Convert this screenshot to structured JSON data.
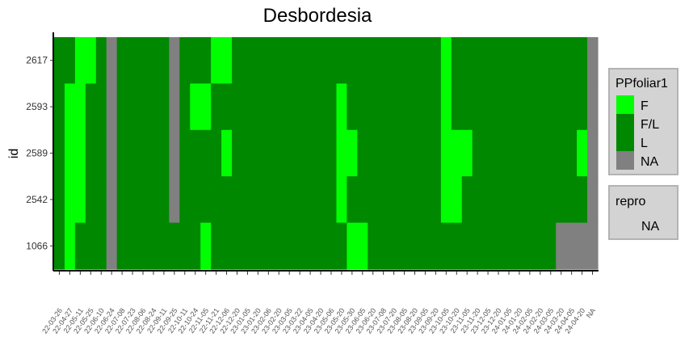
{
  "chart_data": {
    "type": "heatmap",
    "title": "Desbordesia",
    "xlabel": "",
    "ylabel": "id",
    "rows": [
      "2617",
      "2593",
      "2589",
      "2542",
      "1066"
    ],
    "x_ticks": [
      "2022-03-26",
      "2022-04-27",
      "2022-05-11",
      "2022-05-25",
      "2022-06-10",
      "2022-06-24",
      "2022-07-08",
      "2022-07-23",
      "2022-08-06",
      "2022-08-24",
      "2022-09-11",
      "2022-09-25",
      "2022-10-11",
      "2022-10-24",
      "2022-11-05",
      "2022-11-21",
      "2022-12-06",
      "2022-12-20",
      "2023-01-05",
      "2023-01-20",
      "2023-02-06",
      "2023-02-20",
      "2023-03-05",
      "2023-03-22",
      "2023-04-05",
      "2023-04-20",
      "2023-05-06",
      "2023-05-20",
      "2023-05-30",
      "2023-06-05",
      "2023-06-20",
      "2023-07-08",
      "2023-07-20",
      "2023-08-05",
      "2023-08-20",
      "2023-09-05",
      "2023-09-20",
      "2023-10-05",
      "2023-10-20",
      "2023-11-05",
      "2023-11-20",
      "2023-12-05",
      "2023-12-20",
      "2024-01-05",
      "2024-01-20",
      "2024-02-05",
      "2024-02-20",
      "2024-03-05",
      "2024-03-20",
      "2024-04-05",
      "2024-04-20",
      "NA"
    ],
    "x_tick_labels_visible": [
      "22-03-26",
      "22-04-27",
      "22-05-11",
      "22-05-25",
      "22-06-10",
      "22-06-24",
      "22-07-08",
      "22-07-23",
      "22-08-06",
      "22-08-24",
      "22-09-11",
      "22-09-25",
      "22-10-11",
      "22-10-24",
      "22-11-05",
      "22-11-21",
      "22-12-06",
      "22-12-20",
      "23-01-05",
      "23-01-20",
      "23-02-06",
      "23-02-20",
      "23-03-05",
      "23-03-22",
      "23-04-05",
      "23-04-20",
      "23-05-06",
      "23-05-20",
      "23-05-30",
      "23-06-05",
      "23-06-20",
      "23-07-08",
      "23-07-20",
      "23-08-05",
      "23-08-20",
      "23-09-05",
      "23-09-20",
      "23-10-05",
      "23-10-20",
      "23-11-05",
      "23-11-20",
      "23-12-05",
      "23-12-20",
      "24-01-05",
      "24-01-20",
      "24-02-05",
      "24-02-20",
      "24-03-05",
      "24-03-20",
      "24-04-05",
      "24-04-20",
      "NA"
    ],
    "grid": false,
    "legend_position": "right",
    "legend": {
      "title": "PPfoliar1",
      "entries": [
        {
          "label": "F",
          "color": "#00ff00"
        },
        {
          "label": "F/L",
          "color": "#008800"
        },
        {
          "label": "L",
          "color": "#008800"
        },
        {
          "label": "NA",
          "color": "#808080"
        }
      ]
    },
    "legend2": {
      "title": "repro",
      "entries": [
        {
          "label": "NA"
        }
      ]
    },
    "cells": {
      "2617": [
        "L",
        "L",
        "F",
        "F",
        "L",
        "NA",
        "L",
        "L",
        "L",
        "L",
        "L",
        "NA",
        "L",
        "L",
        "L",
        "F",
        "F",
        "L",
        "L",
        "L",
        "L",
        "L",
        "L",
        "L",
        "L",
        "L",
        "L",
        "L",
        "L",
        "L",
        "L",
        "L",
        "L",
        "L",
        "L",
        "L",
        "L",
        "F",
        "L",
        "L",
        "L",
        "L",
        "L",
        "L",
        "L",
        "L",
        "L",
        "L",
        "L",
        "L",
        "L",
        "NA"
      ],
      "2593": [
        "L",
        "F",
        "F",
        "L",
        "L",
        "NA",
        "L",
        "L",
        "L",
        "L",
        "L",
        "NA",
        "L",
        "F",
        "F",
        "L",
        "L",
        "L",
        "L",
        "L",
        "L",
        "L",
        "L",
        "L",
        "L",
        "L",
        "L",
        "F",
        "L",
        "L",
        "L",
        "L",
        "L",
        "L",
        "L",
        "L",
        "L",
        "F",
        "L",
        "L",
        "L",
        "L",
        "L",
        "L",
        "L",
        "L",
        "L",
        "L",
        "L",
        "L",
        "L",
        "NA"
      ],
      "2589": [
        "L",
        "F",
        "F",
        "L",
        "L",
        "NA",
        "L",
        "L",
        "L",
        "L",
        "L",
        "NA",
        "L",
        "L",
        "L",
        "L",
        "F",
        "L",
        "L",
        "L",
        "L",
        "L",
        "L",
        "L",
        "L",
        "L",
        "L",
        "F",
        "F",
        "L",
        "L",
        "L",
        "L",
        "L",
        "L",
        "L",
        "L",
        "F",
        "F",
        "F",
        "L",
        "L",
        "L",
        "L",
        "L",
        "L",
        "L",
        "L",
        "L",
        "L",
        "F",
        "NA"
      ],
      "2542": [
        "L",
        "F",
        "F",
        "L",
        "L",
        "NA",
        "L",
        "L",
        "L",
        "L",
        "L",
        "NA",
        "L",
        "L",
        "L",
        "L",
        "L",
        "L",
        "L",
        "L",
        "L",
        "L",
        "L",
        "L",
        "L",
        "L",
        "L",
        "F",
        "L",
        "L",
        "L",
        "L",
        "L",
        "L",
        "L",
        "L",
        "L",
        "F",
        "F",
        "L",
        "L",
        "L",
        "L",
        "L",
        "L",
        "L",
        "L",
        "L",
        "L",
        "L",
        "L",
        "NA"
      ],
      "1066": [
        "L",
        "F",
        "L",
        "L",
        "L",
        "NA",
        "L",
        "L",
        "L",
        "L",
        "L",
        "L",
        "L",
        "L",
        "F",
        "L",
        "L",
        "L",
        "L",
        "L",
        "L",
        "L",
        "L",
        "L",
        "L",
        "L",
        "L",
        "L",
        "F",
        "F",
        "L",
        "L",
        "L",
        "L",
        "L",
        "L",
        "L",
        "L",
        "L",
        "L",
        "L",
        "L",
        "L",
        "L",
        "L",
        "L",
        "L",
        "L",
        "NA",
        "NA",
        "NA",
        "NA"
      ]
    },
    "colors": {
      "F": "#00ff00",
      "L": "#008800",
      "NA": "#808080",
      "legend_bg": "#d3d3d3",
      "legend_border": "#b3b3b3"
    }
  }
}
